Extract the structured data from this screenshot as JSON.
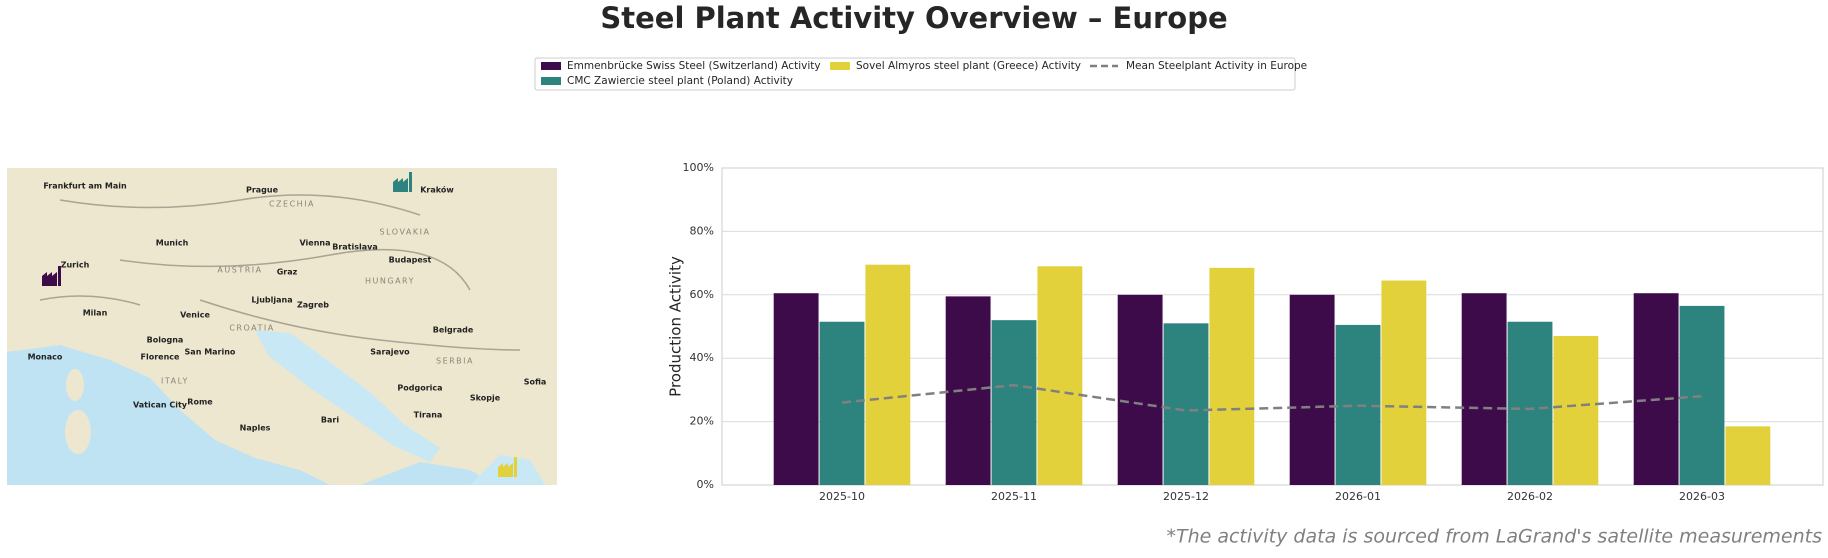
{
  "chart_data": {
    "type": "bar",
    "title": "Steel Plant Activity Overview – Europe",
    "ylabel": "Production Activity",
    "footnote": "*The activity data is sourced from LaGrand's satellite measurements",
    "categories": [
      "2025-10",
      "2025-11",
      "2025-12",
      "2026-01",
      "2026-02",
      "2026-03"
    ],
    "series": [
      {
        "name": "Emmenbrücke Swiss Steel (Switzerland) Activity",
        "color": "#3e0b4a",
        "values": [
          60.5,
          59.5,
          60,
          60,
          60.5,
          60.5
        ]
      },
      {
        "name": "CMC Zawiercie steel plant (Poland) Activity",
        "color": "#2d837e",
        "values": [
          51.5,
          52,
          51,
          50.5,
          51.5,
          56.5
        ]
      },
      {
        "name": "Sovel Almyros steel plant (Greece) Activity",
        "color": "#e3d13b",
        "values": [
          69.5,
          69,
          68.5,
          64.5,
          47,
          18.5
        ]
      },
      {
        "name": "Mean Steelplant Activity in Europe",
        "color": "#808080",
        "type": "line",
        "linestyle": "dashed",
        "values": [
          26,
          31.5,
          23.5,
          25,
          24,
          28
        ]
      }
    ],
    "ylim": [
      0,
      100
    ],
    "yticks": [
      {
        "value": 0,
        "label": "0%"
      },
      {
        "value": 20,
        "label": "20%"
      },
      {
        "value": 40,
        "label": "40%"
      },
      {
        "value": 60,
        "label": "60%"
      },
      {
        "value": 80,
        "label": "80%"
      },
      {
        "value": 100,
        "label": "100%"
      }
    ],
    "grid": true,
    "legend": "top"
  },
  "map": {
    "labels": [
      "Frankfurt am Main",
      "Prague",
      "CZECHIA",
      "SLOVAKIA",
      "Munich",
      "Vienna",
      "Bratislava",
      "Budapest",
      "AUSTRIA",
      "HUNGARY",
      "Graz",
      "Ljubljana",
      "Zagreb",
      "CROATIA",
      "Milan",
      "Venice",
      "Bologna",
      "Florence",
      "San Marino",
      "Monaco",
      "ITALY",
      "Rome",
      "Vatican City",
      "Naples",
      "Bari",
      "Sarajevo",
      "Belgrade",
      "SERBIA",
      "Podgorica",
      "Tirana",
      "Skopje",
      "Sofia",
      "Kraków",
      "Zurich"
    ]
  }
}
